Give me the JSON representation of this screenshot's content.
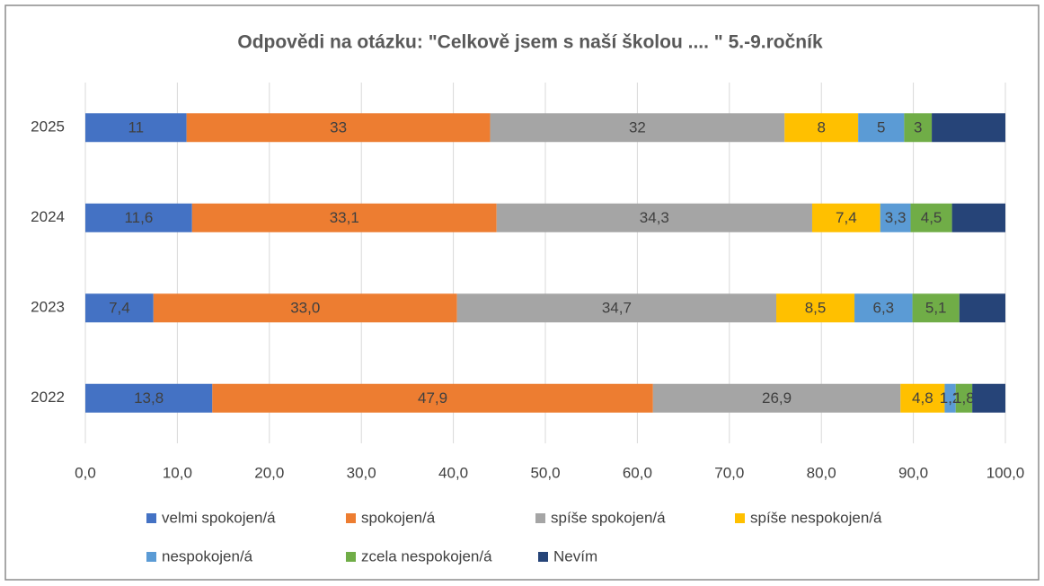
{
  "chart_data": {
    "type": "stacked-bar-horizontal",
    "title": "Odpovědi na otázku: \"Celkově jsem s naší školou .... \" 5.-9.ročník",
    "categories": [
      "2025",
      "2024",
      "2023",
      "2022"
    ],
    "series": [
      {
        "name": "velmi spokojen/á",
        "color": "#4472c4",
        "values": [
          11,
          11.6,
          7.4,
          13.8
        ],
        "value_labels": [
          "11",
          "11,6",
          "7,4",
          "13,8"
        ]
      },
      {
        "name": "spokojen/á",
        "color": "#ed7d31",
        "values": [
          33,
          33.1,
          33.0,
          47.9
        ],
        "value_labels": [
          "33",
          "33,1",
          "33,0",
          "47,9"
        ]
      },
      {
        "name": "spíše spokojen/á",
        "color": "#a5a5a5",
        "values": [
          32,
          34.3,
          34.7,
          26.9
        ],
        "value_labels": [
          "32",
          "34,3",
          "34,7",
          "26,9"
        ]
      },
      {
        "name": "spíše nespokojen/á",
        "color": "#ffc000",
        "values": [
          8,
          7.4,
          8.5,
          4.8
        ],
        "value_labels": [
          "8",
          "7,4",
          "8,5",
          "4,8"
        ]
      },
      {
        "name": "nespokojen/á",
        "color": "#5b9bd5",
        "values": [
          5,
          3.3,
          6.3,
          1.2
        ],
        "value_labels": [
          "5",
          "3,3",
          "6,3",
          "1,2"
        ]
      },
      {
        "name": "zcela nespokojen/á",
        "color": "#70ad47",
        "values": [
          3,
          4.5,
          5.1,
          1.8
        ],
        "value_labels": [
          "3",
          "4,5",
          "5,1",
          "1,8"
        ]
      },
      {
        "name": "Nevím",
        "color": "#264478",
        "values": [
          8,
          5.8,
          5.0,
          3.6
        ]
      }
    ],
    "xlim": [
      0,
      100
    ],
    "xticks": [
      {
        "value": 0,
        "label": "0,0"
      },
      {
        "value": 10,
        "label": "10,0"
      },
      {
        "value": 20,
        "label": "20,0"
      },
      {
        "value": 30,
        "label": "30,0"
      },
      {
        "value": 40,
        "label": "40,0"
      },
      {
        "value": 50,
        "label": "50,0"
      },
      {
        "value": 60,
        "label": "60,0"
      },
      {
        "value": 70,
        "label": "70,0"
      },
      {
        "value": 80,
        "label": "80,0"
      },
      {
        "value": 90,
        "label": "90,0"
      },
      {
        "value": 100,
        "label": "100,0"
      }
    ],
    "grid": true,
    "legend": "bottom"
  }
}
